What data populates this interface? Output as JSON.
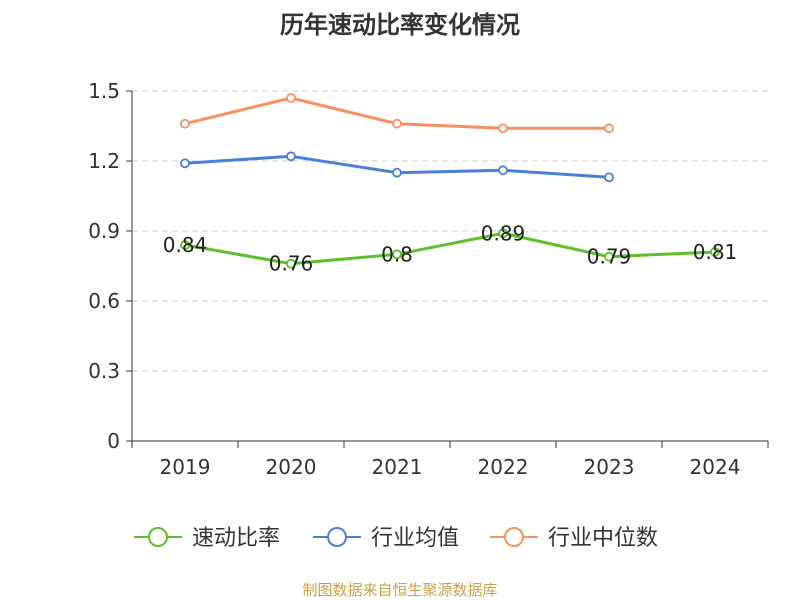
{
  "chart_data": {
    "type": "line",
    "title": "历年速动比率变化情况",
    "categories": [
      "2019",
      "2020",
      "2021",
      "2022",
      "2023",
      "2024"
    ],
    "ylim": [
      0,
      1.5
    ],
    "yticks": [
      "0",
      "0.3",
      "0.6",
      "0.9",
      "1.2",
      "1.5"
    ],
    "grid": true,
    "legend_position": "bottom",
    "series": [
      {
        "name": "速动比率",
        "color": "#5cbf2a",
        "values": [
          0.84,
          0.76,
          0.8,
          0.89,
          0.79,
          0.81
        ],
        "labels": [
          "0.84",
          "0.76",
          "0.8",
          "0.89",
          "0.79",
          "0.81"
        ]
      },
      {
        "name": "行业均值",
        "color": "#4a7fd6",
        "values": [
          1.19,
          1.22,
          1.15,
          1.16,
          1.13,
          null
        ]
      },
      {
        "name": "行业中位数",
        "color": "#f59060",
        "values": [
          1.36,
          1.47,
          1.36,
          1.34,
          1.34,
          null
        ]
      }
    ]
  },
  "source_text": "制图数据来自恒生聚源数据库"
}
